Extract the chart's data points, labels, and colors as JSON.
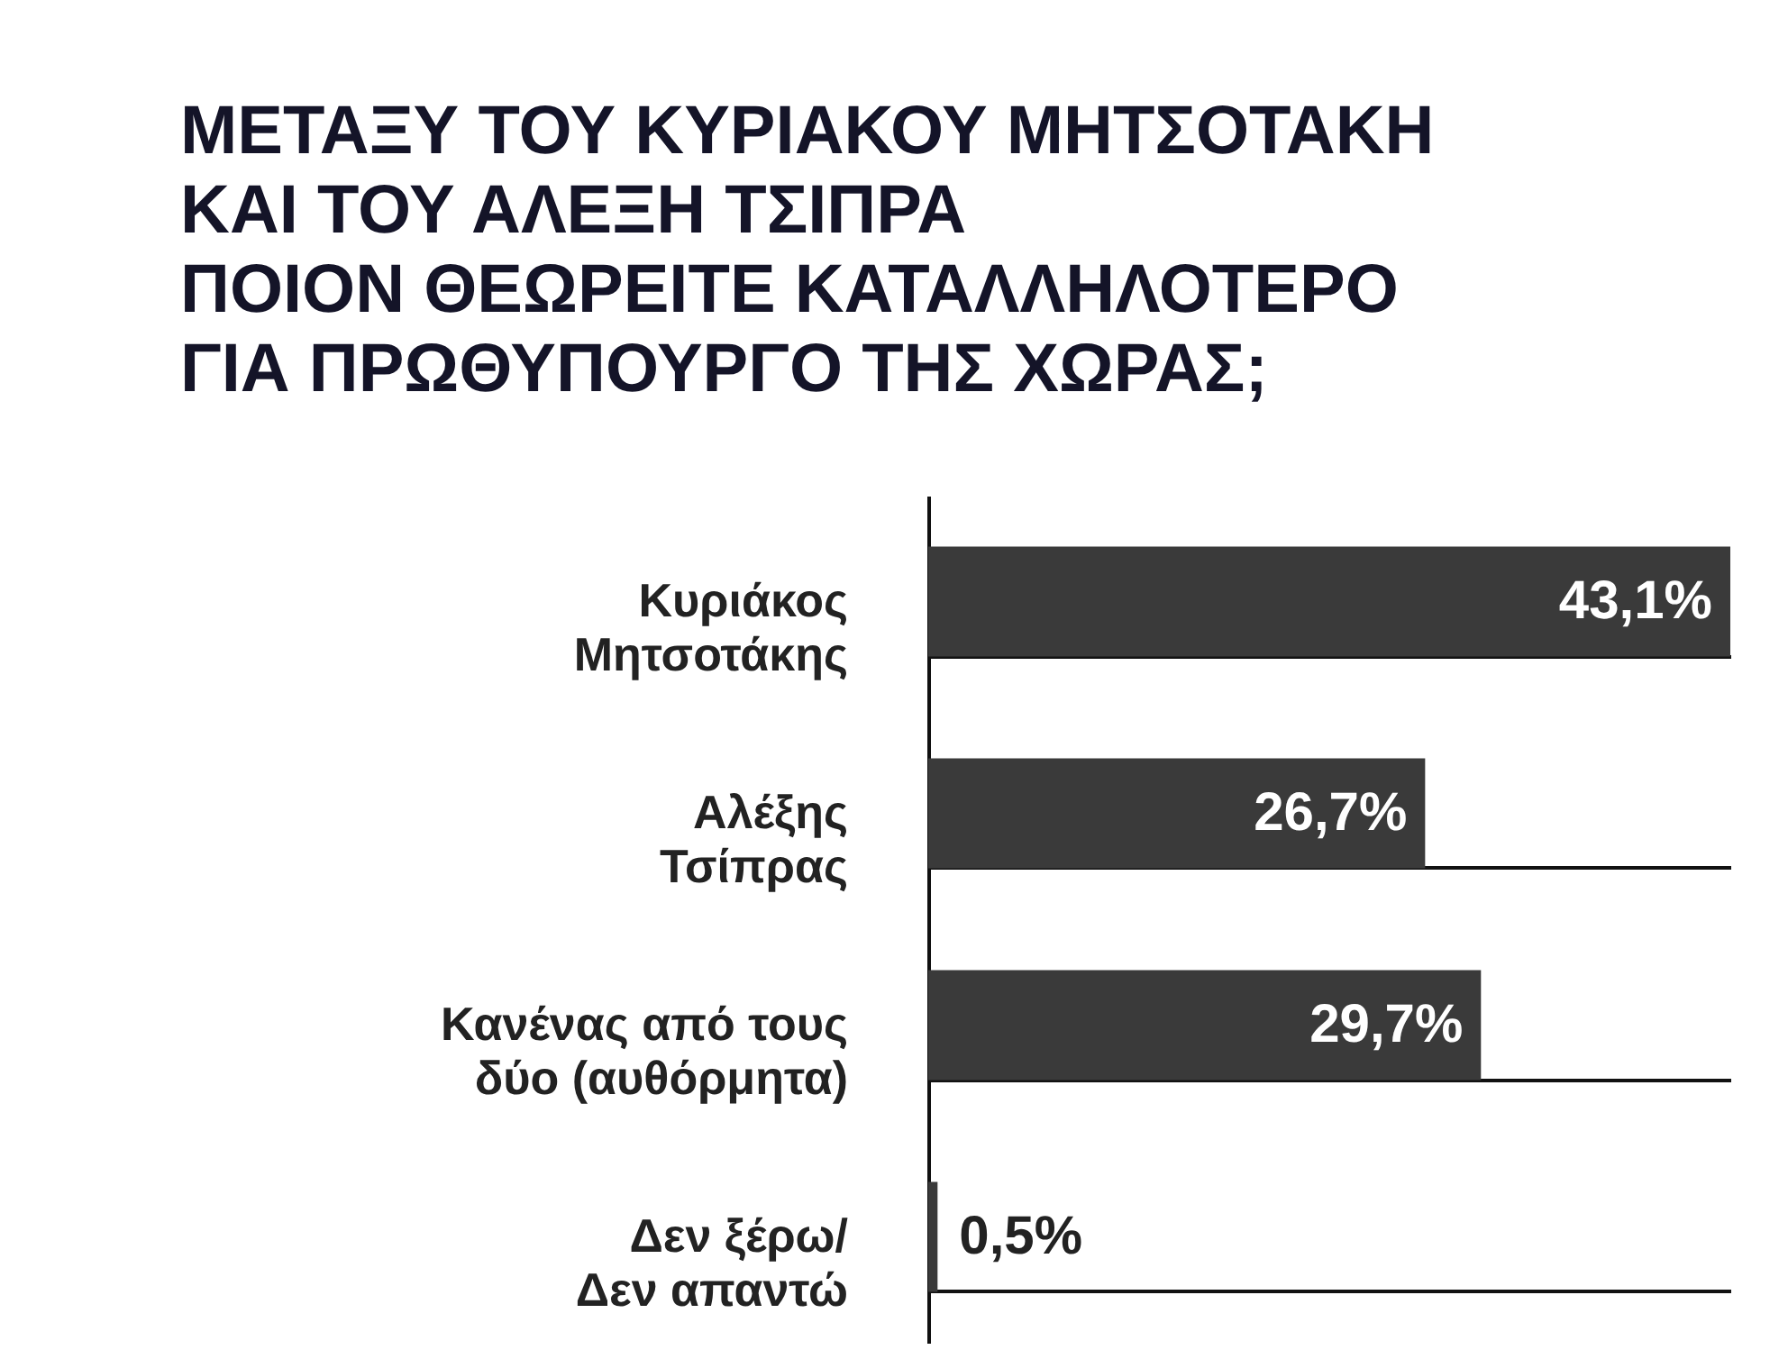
{
  "chart_data": {
    "type": "bar",
    "orientation": "horizontal",
    "title": "ΜΕΤΑΞΥ ΤΟΥ ΚΥΡΙΑΚΟΥ ΜΗΤΣΟΤΑΚΗ\nΚΑΙ ΤΟΥ ΑΛΕΞΗ ΤΣΙΠΡΑ\nΠΟΙΟΝ ΘΕΩΡΕΙΤΕ ΚΑΤΑΛΛΗΛΟΤΕΡΟ\nΓΙΑ ΠΡΩΘΥΠΟΥΡΓΟ ΤΗΣ ΧΩΡΑΣ;",
    "categories": [
      "Κυριάκος\nΜητσοτάκης",
      "Αλέξης\nΤσίπρας",
      "Κανένας από τους\nδύο (αυθόρμητα)",
      "Δεν ξέρω/\nΔεν απαντώ"
    ],
    "values": [
      43.1,
      26.7,
      29.7,
      0.5
    ],
    "value_labels": [
      "43,1%",
      "26,7%",
      "29,7%",
      "0,5%"
    ],
    "color": "#3a3a3a",
    "grid": "y",
    "tick_labels": "y"
  }
}
